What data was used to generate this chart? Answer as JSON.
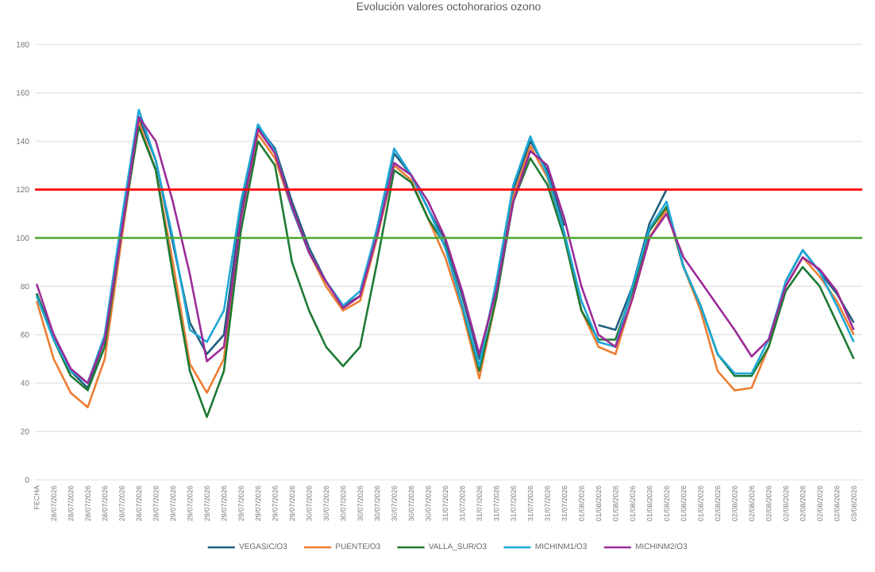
{
  "chart_data": {
    "type": "line",
    "title": "Evolución valores octohorarios ozono",
    "categories": [
      "FECHA",
      "28/07/2026",
      "28/07/2026",
      "28/07/2026",
      "28/07/2026",
      "28/07/2026",
      "28/07/2026",
      "28/07/2026",
      "29/07/2026",
      "29/07/2026",
      "29/07/2026",
      "29/07/2026",
      "29/07/2026",
      "29/07/2026",
      "29/07/2026",
      "29/07/2026",
      "30/07/2026",
      "30/07/2026",
      "30/07/2026",
      "30/07/2026",
      "30/07/2026",
      "30/07/2026",
      "30/07/2026",
      "30/07/2026",
      "31/07/2026",
      "31/07/2026",
      "31/07/2026",
      "31/07/2026",
      "31/07/2026",
      "31/07/2026",
      "31/07/2026",
      "31/07/2026",
      "01/08/2026",
      "01/08/2026",
      "01/08/2026",
      "01/08/2026",
      "01/08/2026",
      "01/08/2026",
      "01/08/2026",
      "01/08/2026",
      "02/08/2026",
      "02/08/2026",
      "02/08/2026",
      "02/08/2026",
      "02/08/2026",
      "02/08/2026",
      "02/08/2026",
      "02/08/2026",
      "03/08/2026"
    ],
    "series": [
      {
        "name": "VEGASIC/O3",
        "color": "#215f7e",
        "values": [
          77,
          60,
          45,
          38,
          58,
          105,
          150,
          132,
          98,
          65,
          52,
          60,
          112,
          146,
          137,
          115,
          96,
          82,
          72,
          76,
          104,
          135,
          126,
          112,
          99,
          76,
          50,
          80,
          120,
          140,
          128,
          105,
          null,
          64,
          62,
          80,
          106,
          120,
          null,
          null,
          null,
          null,
          null,
          null,
          82,
          95,
          86,
          77,
          65
        ]
      },
      {
        "name": "PUENTE/O3",
        "color": "#ed7d31",
        "values": [
          74,
          50,
          36,
          30,
          50,
          100,
          148,
          128,
          90,
          48,
          36,
          50,
          108,
          143,
          133,
          112,
          94,
          80,
          70,
          74,
          100,
          130,
          124,
          108,
          92,
          70,
          42,
          75,
          117,
          138,
          125,
          102,
          70,
          55,
          52,
          75,
          100,
          112,
          88,
          70,
          45,
          37,
          38,
          55,
          80,
          92,
          84,
          74,
          60
        ]
      },
      {
        "name": "VALLA_SUR/O3",
        "color": "#1e7a34",
        "values": [
          77,
          58,
          43,
          37,
          55,
          103,
          146,
          128,
          85,
          45,
          26,
          45,
          103,
          140,
          130,
          90,
          70,
          55,
          47,
          55,
          90,
          128,
          123,
          108,
          97,
          72,
          45,
          75,
          115,
          133,
          122,
          100,
          70,
          58,
          58,
          78,
          103,
          113,
          88,
          72,
          52,
          43,
          43,
          55,
          78,
          88,
          80,
          65,
          50
        ]
      },
      {
        "name": "MICHINM1/O3",
        "color": "#1ea7d6",
        "values": [
          76,
          58,
          45,
          40,
          60,
          108,
          153,
          132,
          100,
          62,
          57,
          70,
          115,
          147,
          136,
          112,
          94,
          82,
          72,
          78,
          104,
          137,
          126,
          112,
          96,
          72,
          47,
          82,
          122,
          142,
          126,
          102,
          74,
          57,
          55,
          80,
          104,
          115,
          88,
          72,
          52,
          44,
          44,
          58,
          82,
          95,
          86,
          72,
          57
        ]
      },
      {
        "name": "MICHINM2/O3",
        "color": "#9b2c98",
        "values": [
          81,
          60,
          46,
          40,
          58,
          103,
          150,
          140,
          115,
          85,
          49,
          55,
          108,
          145,
          135,
          113,
          94,
          82,
          71,
          76,
          101,
          131,
          126,
          115,
          100,
          78,
          52,
          78,
          115,
          136,
          130,
          108,
          80,
          60,
          55,
          75,
          100,
          110,
          92,
          82,
          72,
          62,
          51,
          58,
          80,
          92,
          87,
          78,
          62
        ]
      }
    ],
    "ylim": [
      0,
      180
    ],
    "yticks": [
      0,
      20,
      40,
      60,
      80,
      100,
      120,
      140,
      160,
      180
    ],
    "grid": "y",
    "legend": "bottom",
    "ref_lines": [
      {
        "axis": "y",
        "value": 120,
        "color": "#ff0000"
      },
      {
        "axis": "y",
        "value": 100,
        "color": "#4ca82e"
      }
    ]
  }
}
